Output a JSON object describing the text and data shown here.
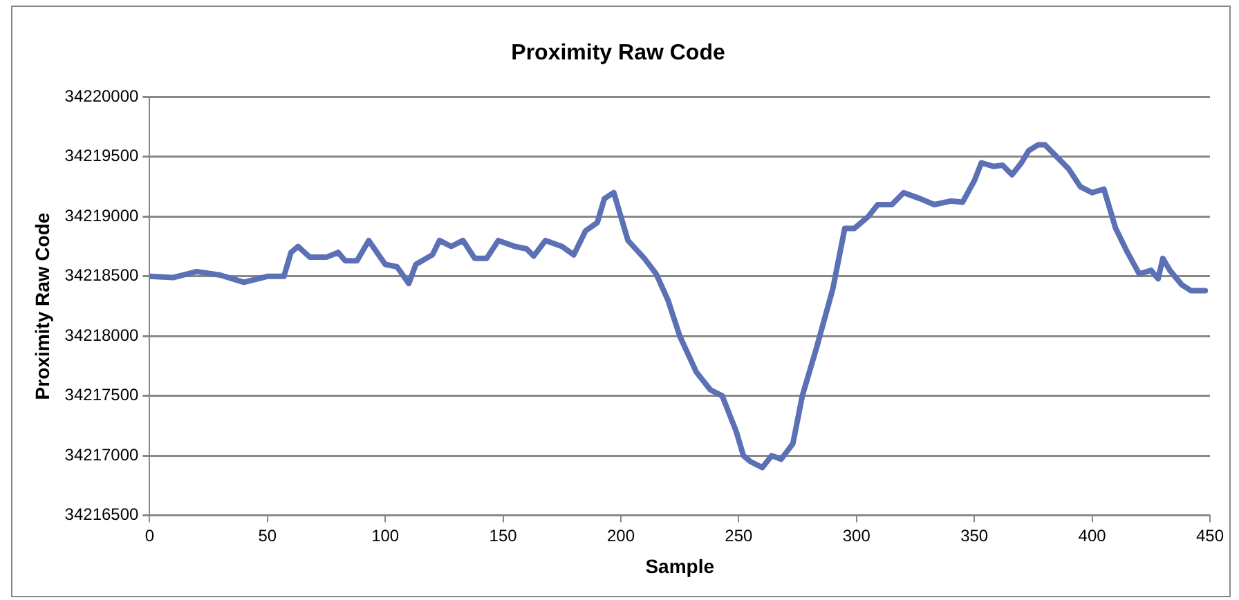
{
  "chart_data": {
    "type": "line",
    "title": "Proximity Raw Code",
    "xlabel": "Sample",
    "ylabel": "Proximity Raw Code",
    "x": [
      0,
      10,
      20,
      30,
      40,
      50,
      57,
      60,
      63,
      68,
      75,
      80,
      83,
      88,
      93,
      100,
      105,
      110,
      113,
      120,
      123,
      128,
      133,
      138,
      143,
      148,
      155,
      160,
      163,
      168,
      175,
      180,
      185,
      190,
      193,
      197,
      203,
      210,
      215,
      220,
      225,
      232,
      238,
      243,
      246,
      249,
      252,
      255,
      260,
      264,
      268,
      273,
      277,
      283,
      290,
      295,
      299,
      305,
      309,
      315,
      320,
      327,
      333,
      340,
      345,
      350,
      353,
      358,
      362,
      366,
      370,
      373,
      377,
      380,
      385,
      390,
      395,
      400,
      405,
      410,
      415,
      420,
      425,
      428,
      430,
      433,
      438,
      442,
      448
    ],
    "series": [
      {
        "color": "#5b70b5",
        "values": [
          34218500,
          34218490,
          34218540,
          34218510,
          34218450,
          34218500,
          34218500,
          34218700,
          34218750,
          34218660,
          34218660,
          34218700,
          34218630,
          34218630,
          34218800,
          34218600,
          34218580,
          34218440,
          34218600,
          34218680,
          34218800,
          34218750,
          34218800,
          34218650,
          34218650,
          34218800,
          34218750,
          34218730,
          34218670,
          34218800,
          34218750,
          34218680,
          34218880,
          34218950,
          34219150,
          34219200,
          34218800,
          34218650,
          34218520,
          34218300,
          34218000,
          34217700,
          34217550,
          34217500,
          34217350,
          34217200,
          34217000,
          34216950,
          34216900,
          34217000,
          34216970,
          34217100,
          34217500,
          34217900,
          34218400,
          34218900,
          34218900,
          34219000,
          34219100,
          34219100,
          34219200,
          34219150,
          34219100,
          34219130,
          34219120,
          34219300,
          34219450,
          34219420,
          34219430,
          34219350,
          34219450,
          34219550,
          34219600,
          34219600,
          34219500,
          34219400,
          34219250,
          34219200,
          34219230,
          34218900,
          34218700,
          34218520,
          34218550,
          34218480,
          34218650,
          34218550,
          34218430,
          34218380,
          34218380
        ]
      }
    ],
    "xlim": [
      0,
      450
    ],
    "xticks": [
      0,
      50,
      100,
      150,
      200,
      250,
      300,
      350,
      400,
      450
    ],
    "ylim": [
      34216500,
      34220000
    ],
    "yticks": [
      34216500,
      34217000,
      34217500,
      34218000,
      34218500,
      34219000,
      34219500,
      34220000
    ],
    "grid": "y",
    "legend": false,
    "marker": "none",
    "line_style": "solid"
  }
}
